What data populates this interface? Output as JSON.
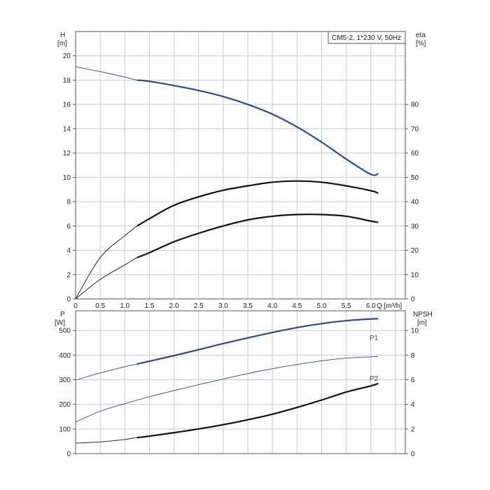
{
  "chart_data": [
    {
      "type": "line",
      "panel": "top",
      "legend_box": "CM5-2, 1*230 V, 50Hz",
      "x_axis": {
        "label": "Q [m³/h]",
        "range": [
          0,
          6.7
        ],
        "ticks": [
          0,
          0.5,
          1.0,
          1.5,
          2.0,
          2.5,
          3.0,
          3.5,
          4.0,
          4.5,
          5.0,
          5.5,
          6.0
        ]
      },
      "y_left": {
        "label": "H",
        "unit": "[m]",
        "range": [
          0,
          22
        ],
        "ticks": [
          0,
          2,
          4,
          6,
          8,
          10,
          12,
          14,
          16,
          18,
          20
        ]
      },
      "y_right": {
        "label": "eta",
        "unit": "[%]",
        "range": [
          0,
          110
        ],
        "ticks": [
          0,
          10,
          20,
          30,
          40,
          50,
          60,
          70,
          80
        ]
      },
      "grid": true,
      "series": [
        {
          "axis": "left",
          "color": "#2b4a86",
          "x": [
            0,
            0.5,
            1.0,
            1.25,
            1.5,
            2.0,
            2.5,
            3.0,
            3.5,
            4.0,
            4.5,
            5.0,
            5.5,
            6.0,
            6.15
          ],
          "y": [
            19.1,
            18.7,
            18.25,
            18.0,
            17.9,
            17.55,
            17.15,
            16.65,
            16.0,
            15.2,
            14.15,
            12.9,
            11.5,
            10.25,
            10.3
          ],
          "highlight_from": 1.25
        },
        {
          "axis": "right",
          "color": "#111111",
          "x": [
            0,
            0.5,
            1.0,
            1.25,
            1.5,
            2.0,
            2.5,
            3.0,
            3.5,
            4.0,
            4.5,
            5.0,
            5.5,
            6.0,
            6.15
          ],
          "y": [
            0,
            17,
            26,
            30,
            33,
            38.5,
            42,
            44.7,
            46.5,
            48,
            48.5,
            48,
            46.5,
            44.5,
            43.5
          ],
          "highlight_from": 1.25
        },
        {
          "axis": "right",
          "color": "#111111",
          "x": [
            0,
            0.5,
            1.0,
            1.25,
            1.5,
            2.0,
            2.5,
            3.0,
            3.5,
            4.0,
            4.5,
            5.0,
            5.5,
            6.0,
            6.15
          ],
          "y": [
            0,
            8,
            14,
            17,
            19,
            23.5,
            27,
            30,
            32.5,
            34,
            34.7,
            34.7,
            34,
            32,
            31.5
          ],
          "highlight_from": 1.25
        }
      ]
    },
    {
      "type": "line",
      "panel": "bottom",
      "x_axis": {
        "range": [
          0,
          6.7
        ]
      },
      "y_left": {
        "label": "P",
        "unit": "[W]",
        "range": [
          0,
          580
        ],
        "ticks": [
          0,
          100,
          200,
          300,
          400,
          500
        ]
      },
      "y_right": {
        "label": "NPSH",
        "unit": "[m]",
        "range": [
          0,
          11.6
        ],
        "ticks": [
          0,
          2,
          4,
          6,
          8,
          10
        ]
      },
      "grid": true,
      "series": [
        {
          "name": "P1",
          "axis": "left",
          "color": "#2b4a86",
          "x": [
            0,
            0.5,
            1.0,
            1.25,
            1.5,
            2.0,
            2.5,
            3.0,
            3.5,
            4.0,
            4.5,
            5.0,
            5.5,
            6.0,
            6.15
          ],
          "y": [
            298,
            328,
            353,
            364,
            375,
            398,
            422,
            447,
            470,
            492,
            512,
            528,
            540,
            547,
            548
          ],
          "highlight_from": 1.25
        },
        {
          "name": "P2",
          "axis": "left",
          "color": "#2b4a86",
          "x": [
            0,
            0.5,
            1.0,
            1.5,
            2.0,
            2.5,
            3.0,
            3.5,
            4.0,
            4.5,
            5.0,
            5.5,
            6.0,
            6.15
          ],
          "y": [
            128,
            172,
            203,
            231,
            256,
            280,
            303,
            325,
            345,
            362,
            377,
            388,
            393,
            394
          ],
          "highlight_from": 99
        },
        {
          "axis": "right",
          "color": "#111111",
          "x": [
            0,
            0.5,
            1.0,
            1.25,
            1.5,
            2.0,
            2.5,
            3.0,
            3.5,
            4.0,
            4.5,
            5.0,
            5.5,
            6.0,
            6.15
          ],
          "y": [
            0.85,
            0.95,
            1.15,
            1.3,
            1.42,
            1.7,
            2.0,
            2.35,
            2.75,
            3.2,
            3.75,
            4.35,
            5.0,
            5.5,
            5.7
          ],
          "highlight_from": 1.25
        }
      ]
    }
  ]
}
